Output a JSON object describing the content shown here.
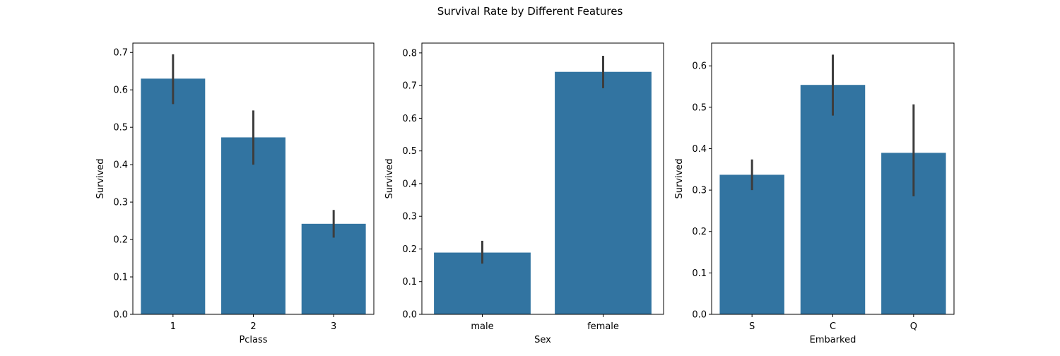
{
  "figure": {
    "suptitle": "Survival Rate by Different Features"
  },
  "colors": {
    "bar": "#3274a1",
    "errorbar": "#3d3d3d",
    "axes": "#000000"
  },
  "chart_data": [
    {
      "type": "bar",
      "xlabel": "Pclass",
      "ylabel": "Survived",
      "categories": [
        "1",
        "2",
        "3"
      ],
      "values": [
        0.63,
        0.473,
        0.242
      ],
      "ci_low": [
        0.562,
        0.4,
        0.205
      ],
      "ci_high": [
        0.695,
        0.545,
        0.279
      ],
      "ylim": [
        0,
        0.725
      ],
      "yticks": [
        0.0,
        0.1,
        0.2,
        0.3,
        0.4,
        0.5,
        0.6,
        0.7
      ],
      "ytick_labels": [
        "0.0",
        "0.1",
        "0.2",
        "0.3",
        "0.4",
        "0.5",
        "0.6",
        "0.7"
      ],
      "grid": false
    },
    {
      "type": "bar",
      "xlabel": "Sex",
      "ylabel": "Survived",
      "categories": [
        "male",
        "female"
      ],
      "values": [
        0.189,
        0.742
      ],
      "ci_low": [
        0.155,
        0.692
      ],
      "ci_high": [
        0.225,
        0.791
      ],
      "ylim": [
        0,
        0.83
      ],
      "yticks": [
        0.0,
        0.1,
        0.2,
        0.3,
        0.4,
        0.5,
        0.6,
        0.7,
        0.8
      ],
      "ytick_labels": [
        "0.0",
        "0.1",
        "0.2",
        "0.3",
        "0.4",
        "0.5",
        "0.6",
        "0.7",
        "0.8"
      ],
      "grid": false
    },
    {
      "type": "bar",
      "xlabel": "Embarked",
      "ylabel": "Survived",
      "categories": [
        "S",
        "C",
        "Q"
      ],
      "values": [
        0.337,
        0.554,
        0.39
      ],
      "ci_low": [
        0.3,
        0.48,
        0.285
      ],
      "ci_high": [
        0.374,
        0.627,
        0.507
      ],
      "ylim": [
        0,
        0.655
      ],
      "yticks": [
        0.0,
        0.1,
        0.2,
        0.3,
        0.4,
        0.5,
        0.6
      ],
      "ytick_labels": [
        "0.0",
        "0.1",
        "0.2",
        "0.3",
        "0.4",
        "0.5",
        "0.6"
      ],
      "grid": false
    }
  ]
}
